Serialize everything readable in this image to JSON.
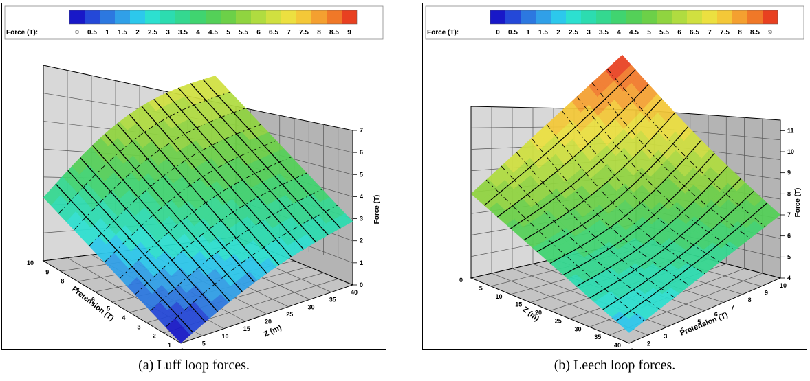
{
  "colorbar": {
    "label": "Force (T):",
    "ticks": [
      "0",
      "0.5",
      "1",
      "1.5",
      "2",
      "2.5",
      "3",
      "3.5",
      "4",
      "4.5",
      "5",
      "5.5",
      "6",
      "6.5",
      "7",
      "7.5",
      "8",
      "8.5",
      "9"
    ],
    "colors": [
      "#1818c8",
      "#2448d8",
      "#2c78e0",
      "#30a0e8",
      "#2cc8ec",
      "#2ce0d0",
      "#2cdcb0",
      "#34d890",
      "#40d470",
      "#54d058",
      "#6cd048",
      "#90d440",
      "#b0dc40",
      "#d0e040",
      "#ece040",
      "#f4c838",
      "#f4a030",
      "#f07828",
      "#e84020"
    ]
  },
  "captions": {
    "a": "(a)  Luff loop forces.",
    "b": "(b)  Leech loop forces."
  },
  "chart_data": [
    {
      "type": "surface3d",
      "title": "",
      "zlabel": "Force (T)",
      "xlabel": "Pretension (T)",
      "ylabel": "Z (m)",
      "x_ticks": [
        "10",
        "9",
        "8",
        "7",
        "6",
        "5",
        "4",
        "3",
        "2",
        "1"
      ],
      "y_ticks": [
        "0",
        "5",
        "10",
        "15",
        "20",
        "25",
        "30",
        "35",
        "40"
      ],
      "z_ticks": [
        "0",
        "1",
        "2",
        "3",
        "4",
        "5",
        "6",
        "7"
      ],
      "zlim": [
        0,
        7
      ],
      "corner_values": {
        "pretension_10_z_0": 3.4,
        "pretension_1_z_0": 0.0,
        "pretension_10_z_40": 6.8,
        "pretension_1_z_40": 3.4
      }
    },
    {
      "type": "surface3d",
      "title": "",
      "zlabel": "Force (T)",
      "xlabel": "Pretension (T)",
      "ylabel": "Z (m)",
      "y_ticks": [
        "0",
        "5",
        "10",
        "15",
        "20",
        "25",
        "30",
        "35",
        "40"
      ],
      "x_ticks": [
        "1",
        "2",
        "3",
        "4",
        "5",
        "6",
        "7",
        "8",
        "9",
        "10"
      ],
      "z_ticks": [
        "4",
        "5",
        "6",
        "7",
        "8",
        "9",
        "10",
        "11"
      ],
      "zlim": [
        4,
        11.5
      ],
      "corner_values": {
        "pretension_1_z_0": 8.0,
        "pretension_1_z_40": 4.5,
        "pretension_10_z_0": 11.5,
        "pretension_10_z_40": 7.0
      }
    }
  ]
}
